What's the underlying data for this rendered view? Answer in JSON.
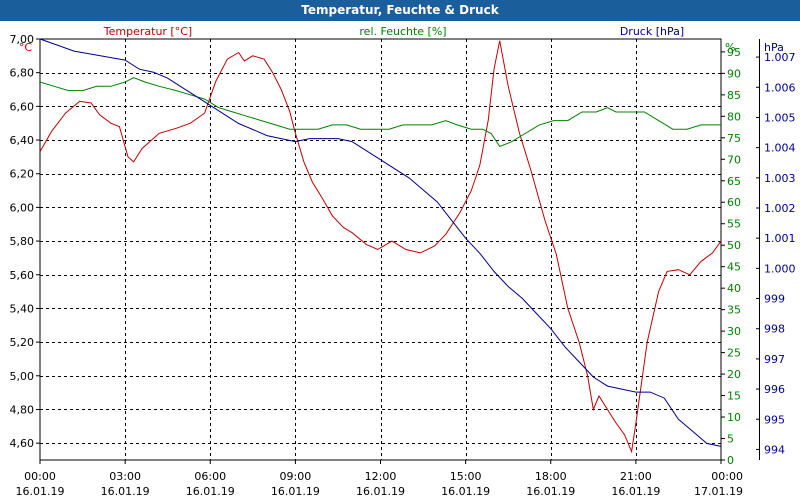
{
  "title": "Temperatur, Feuchte & Druck",
  "colors": {
    "title_bar": "#1b5e9c",
    "temperature": "#c00000",
    "humidity": "#008000",
    "pressure": "#00008b",
    "text": "#000000"
  },
  "chart_data": {
    "type": "line",
    "title": "Temperatur, Feuchte & Druck",
    "x_range": [
      0,
      24
    ],
    "x_ticks": [
      {
        "x": 0,
        "time": "00:00",
        "date": "16.01.19"
      },
      {
        "x": 3,
        "time": "03:00",
        "date": "16.01.19"
      },
      {
        "x": 6,
        "time": "06:00",
        "date": "16.01.19"
      },
      {
        "x": 9,
        "time": "09:00",
        "date": "16.01.19"
      },
      {
        "x": 12,
        "time": "12:00",
        "date": "16.01.19"
      },
      {
        "x": 15,
        "time": "15:00",
        "date": "16.01.19"
      },
      {
        "x": 18,
        "time": "18:00",
        "date": "16.01.19"
      },
      {
        "x": 21,
        "time": "21:00",
        "date": "16.01.19"
      },
      {
        "x": 24,
        "time": "00:00",
        "date": "17.01.19"
      }
    ],
    "axes": {
      "temperature": {
        "unit": "°C",
        "legend": "Temperatur [°C]",
        "range": [
          4.5,
          7.0
        ],
        "ticks": [
          {
            "v": 4.6,
            "label": "4,60"
          },
          {
            "v": 4.8,
            "label": "4,80"
          },
          {
            "v": 5.0,
            "label": "5,00"
          },
          {
            "v": 5.2,
            "label": "5,20"
          },
          {
            "v": 5.4,
            "label": "5,40"
          },
          {
            "v": 5.6,
            "label": "5,60"
          },
          {
            "v": 5.8,
            "label": "5,80"
          },
          {
            "v": 6.0,
            "label": "6,00"
          },
          {
            "v": 6.2,
            "label": "6,20"
          },
          {
            "v": 6.4,
            "label": "6,40"
          },
          {
            "v": 6.6,
            "label": "6,60"
          },
          {
            "v": 6.8,
            "label": "6,80"
          },
          {
            "v": 7.0,
            "label": "7,00"
          }
        ]
      },
      "humidity": {
        "unit": "%",
        "legend": "rel. Feuchte [%]",
        "range": [
          0,
          98
        ],
        "ticks": [
          {
            "v": 0,
            "label": "0"
          },
          {
            "v": 5,
            "label": "5"
          },
          {
            "v": 10,
            "label": "10"
          },
          {
            "v": 15,
            "label": "15"
          },
          {
            "v": 20,
            "label": "20"
          },
          {
            "v": 25,
            "label": "25"
          },
          {
            "v": 30,
            "label": "30"
          },
          {
            "v": 35,
            "label": "35"
          },
          {
            "v": 40,
            "label": "40"
          },
          {
            "v": 45,
            "label": "45"
          },
          {
            "v": 50,
            "label": "50"
          },
          {
            "v": 55,
            "label": "55"
          },
          {
            "v": 60,
            "label": "60"
          },
          {
            "v": 65,
            "label": "65"
          },
          {
            "v": 70,
            "label": "70"
          },
          {
            "v": 75,
            "label": "75"
          },
          {
            "v": 80,
            "label": "80"
          },
          {
            "v": 85,
            "label": "85"
          },
          {
            "v": 90,
            "label": "90"
          },
          {
            "v": 95,
            "label": "95"
          }
        ]
      },
      "pressure": {
        "unit": "hPa",
        "legend": "Druck [hPa]",
        "range": [
          993.65,
          1007.6
        ],
        "ticks": [
          {
            "v": 994,
            "label": "994"
          },
          {
            "v": 995,
            "label": "995"
          },
          {
            "v": 996,
            "label": "996"
          },
          {
            "v": 997,
            "label": "997"
          },
          {
            "v": 998,
            "label": "998"
          },
          {
            "v": 999,
            "label": "999"
          },
          {
            "v": 1000,
            "label": "1.000"
          },
          {
            "v": 1001,
            "label": "1.001"
          },
          {
            "v": 1002,
            "label": "1.002"
          },
          {
            "v": 1003,
            "label": "1.003"
          },
          {
            "v": 1004,
            "label": "1.004"
          },
          {
            "v": 1005,
            "label": "1.005"
          },
          {
            "v": 1006,
            "label": "1.006"
          },
          {
            "v": 1007,
            "label": "1.007"
          }
        ]
      }
    },
    "series": [
      {
        "name": "Temperatur",
        "axis": "temperature",
        "points": [
          [
            0,
            6.33
          ],
          [
            0.4,
            6.45
          ],
          [
            0.9,
            6.56
          ],
          [
            1.4,
            6.63
          ],
          [
            1.8,
            6.62
          ],
          [
            2.1,
            6.55
          ],
          [
            2.5,
            6.5
          ],
          [
            2.8,
            6.48
          ],
          [
            3.1,
            6.3
          ],
          [
            3.3,
            6.27
          ],
          [
            3.6,
            6.35
          ],
          [
            4.2,
            6.44
          ],
          [
            4.8,
            6.47
          ],
          [
            5.3,
            6.5
          ],
          [
            5.8,
            6.56
          ],
          [
            6.2,
            6.75
          ],
          [
            6.6,
            6.88
          ],
          [
            7.0,
            6.92
          ],
          [
            7.2,
            6.87
          ],
          [
            7.5,
            6.9
          ],
          [
            7.9,
            6.88
          ],
          [
            8.2,
            6.8
          ],
          [
            8.5,
            6.7
          ],
          [
            8.8,
            6.57
          ],
          [
            9.0,
            6.44
          ],
          [
            9.3,
            6.27
          ],
          [
            9.6,
            6.15
          ],
          [
            10.0,
            6.04
          ],
          [
            10.3,
            5.95
          ],
          [
            10.7,
            5.88
          ],
          [
            11.0,
            5.85
          ],
          [
            11.5,
            5.78
          ],
          [
            11.9,
            5.75
          ],
          [
            12.4,
            5.8
          ],
          [
            12.9,
            5.75
          ],
          [
            13.4,
            5.73
          ],
          [
            13.9,
            5.77
          ],
          [
            14.3,
            5.84
          ],
          [
            14.8,
            5.97
          ],
          [
            15.2,
            6.1
          ],
          [
            15.5,
            6.25
          ],
          [
            15.8,
            6.52
          ],
          [
            16.0,
            6.82
          ],
          [
            16.2,
            6.99
          ],
          [
            16.5,
            6.72
          ],
          [
            16.9,
            6.44
          ],
          [
            17.3,
            6.22
          ],
          [
            17.8,
            5.92
          ],
          [
            18.2,
            5.72
          ],
          [
            18.6,
            5.4
          ],
          [
            19.0,
            5.2
          ],
          [
            19.3,
            5.0
          ],
          [
            19.5,
            4.8
          ],
          [
            19.7,
            4.88
          ],
          [
            20.0,
            4.8
          ],
          [
            20.3,
            4.72
          ],
          [
            20.6,
            4.65
          ],
          [
            20.85,
            4.55
          ],
          [
            21.0,
            4.72
          ],
          [
            21.4,
            5.2
          ],
          [
            21.8,
            5.5
          ],
          [
            22.1,
            5.62
          ],
          [
            22.5,
            5.63
          ],
          [
            22.9,
            5.6
          ],
          [
            23.3,
            5.68
          ],
          [
            23.7,
            5.73
          ],
          [
            24.0,
            5.8
          ]
        ]
      },
      {
        "name": "rel. Feuchte",
        "axis": "humidity",
        "points": [
          [
            0,
            88
          ],
          [
            0.5,
            87
          ],
          [
            1.0,
            86
          ],
          [
            1.5,
            86
          ],
          [
            2.0,
            87
          ],
          [
            2.5,
            87
          ],
          [
            3.0,
            88
          ],
          [
            3.3,
            89
          ],
          [
            3.7,
            88
          ],
          [
            4.2,
            87
          ],
          [
            4.8,
            86
          ],
          [
            5.3,
            85
          ],
          [
            5.8,
            84
          ],
          [
            6.3,
            82
          ],
          [
            6.8,
            81
          ],
          [
            7.3,
            80
          ],
          [
            7.8,
            79
          ],
          [
            8.3,
            78
          ],
          [
            8.8,
            77
          ],
          [
            9.3,
            77
          ],
          [
            9.8,
            77
          ],
          [
            10.3,
            78
          ],
          [
            10.8,
            78
          ],
          [
            11.3,
            77
          ],
          [
            11.8,
            77
          ],
          [
            12.3,
            77
          ],
          [
            12.8,
            78
          ],
          [
            13.3,
            78
          ],
          [
            13.8,
            78
          ],
          [
            14.3,
            79
          ],
          [
            14.7,
            78
          ],
          [
            15.2,
            77
          ],
          [
            15.6,
            77
          ],
          [
            15.9,
            76
          ],
          [
            16.2,
            73
          ],
          [
            16.6,
            74
          ],
          [
            17.1,
            76
          ],
          [
            17.6,
            78
          ],
          [
            18.1,
            79
          ],
          [
            18.6,
            79
          ],
          [
            19.1,
            81
          ],
          [
            19.6,
            81
          ],
          [
            20.0,
            82
          ],
          [
            20.3,
            81
          ],
          [
            20.8,
            81
          ],
          [
            21.3,
            81
          ],
          [
            21.8,
            79
          ],
          [
            22.3,
            77
          ],
          [
            22.8,
            77
          ],
          [
            23.3,
            78
          ],
          [
            24.0,
            78
          ]
        ]
      },
      {
        "name": "Druck",
        "axis": "pressure",
        "points": [
          [
            0,
            1007.6
          ],
          [
            0.6,
            1007.4
          ],
          [
            1.2,
            1007.2
          ],
          [
            1.8,
            1007.1
          ],
          [
            2.4,
            1007.0
          ],
          [
            3.0,
            1006.9
          ],
          [
            3.5,
            1006.6
          ],
          [
            4.0,
            1006.5
          ],
          [
            4.5,
            1006.3
          ],
          [
            5.0,
            1006.0
          ],
          [
            5.5,
            1005.7
          ],
          [
            6.0,
            1005.4
          ],
          [
            6.5,
            1005.1
          ],
          [
            7.0,
            1004.8
          ],
          [
            7.5,
            1004.6
          ],
          [
            8.0,
            1004.4
          ],
          [
            8.5,
            1004.3
          ],
          [
            9.0,
            1004.2
          ],
          [
            9.5,
            1004.3
          ],
          [
            10.0,
            1004.3
          ],
          [
            10.5,
            1004.3
          ],
          [
            11.0,
            1004.2
          ],
          [
            11.5,
            1003.9
          ],
          [
            12.0,
            1003.6
          ],
          [
            12.5,
            1003.3
          ],
          [
            13.0,
            1003.0
          ],
          [
            13.5,
            1002.6
          ],
          [
            14.0,
            1002.2
          ],
          [
            14.5,
            1001.6
          ],
          [
            15.0,
            1001.0
          ],
          [
            15.5,
            1000.5
          ],
          [
            16.0,
            999.9
          ],
          [
            16.5,
            999.4
          ],
          [
            17.0,
            999.0
          ],
          [
            17.5,
            998.5
          ],
          [
            18.0,
            998.0
          ],
          [
            18.5,
            997.4
          ],
          [
            19.0,
            996.9
          ],
          [
            19.5,
            996.4
          ],
          [
            20.0,
            996.1
          ],
          [
            20.5,
            996.0
          ],
          [
            21.0,
            995.9
          ],
          [
            21.5,
            995.9
          ],
          [
            22.0,
            995.7
          ],
          [
            22.5,
            995.0
          ],
          [
            23.0,
            994.6
          ],
          [
            23.5,
            994.2
          ],
          [
            24.0,
            994.1
          ]
        ]
      }
    ]
  }
}
